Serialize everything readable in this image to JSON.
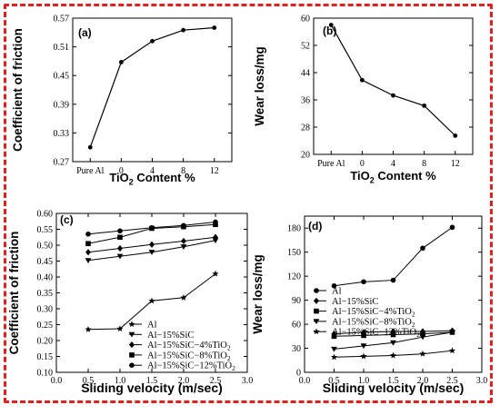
{
  "chart_data": [
    {
      "panel": "(a)",
      "type": "line",
      "categories": [
        "Pure Al",
        "0",
        "4",
        "8",
        "12"
      ],
      "values": [
        0.3,
        0.478,
        0.522,
        0.545,
        0.55
      ],
      "xlabel_main": "TiO",
      "xlabel_sub": "2",
      "xlabel_rest": " Content %",
      "ylabel": "Coefficient of friction",
      "yticks": [
        "0.27",
        "0.33",
        "0.39",
        "0.45",
        "0.51",
        "0.57"
      ],
      "ylim": [
        0.27,
        0.57
      ],
      "grid": false
    },
    {
      "panel": "(b)",
      "type": "line",
      "categories": [
        "Pure Al",
        "0",
        "4",
        "8",
        "12"
      ],
      "values": [
        58.0,
        41.8,
        37.3,
        34.3,
        25.5
      ],
      "xlabel_main": "TiO",
      "xlabel_sub": "2",
      "xlabel_rest": " Content %",
      "ylabel": "Wear loss/mg",
      "yticks": [
        "20",
        "28",
        "36",
        "44",
        "52",
        "60"
      ],
      "ylim": [
        20,
        60
      ],
      "grid": false
    },
    {
      "panel": "(c)",
      "type": "line",
      "x": [
        0.5,
        1.0,
        1.5,
        2.0,
        2.5
      ],
      "series": [
        {
          "name": "Al",
          "marker": "star",
          "values": [
            0.235,
            0.237,
            0.325,
            0.335,
            0.41
          ]
        },
        {
          "name": "Al−15%SiC",
          "marker": "down",
          "values": [
            0.452,
            0.465,
            0.478,
            0.495,
            0.515
          ]
        },
        {
          "name": "Al−15%SiC−4%TiO",
          "sub": "2",
          "marker": "diamond",
          "values": [
            0.478,
            0.49,
            0.502,
            0.513,
            0.525
          ]
        },
        {
          "name": "Al−15%SiC−8%TiO",
          "sub": "2",
          "marker": "square",
          "values": [
            0.505,
            0.525,
            0.553,
            0.558,
            0.565
          ]
        },
        {
          "name": "Al−15%SiC−12%TiO",
          "sub": "2",
          "marker": "circle",
          "values": [
            0.535,
            0.545,
            0.555,
            0.562,
            0.573
          ]
        }
      ],
      "xlabel": "Sliding velocity (m/sec)",
      "ylabel": "Coefficient of friction",
      "xticks": [
        "0.0",
        "0.5",
        "1.0",
        "1.5",
        "2.0",
        "2.5",
        "3.0"
      ],
      "xlim": [
        0,
        3
      ],
      "yticks": [
        "0.10",
        "0.15",
        "0.20",
        "0.25",
        "0.30",
        "0.35",
        "0.40",
        "0.45",
        "0.50",
        "0.55",
        "0.60"
      ],
      "ylim": [
        0.1,
        0.6
      ],
      "legend": "bottom-right",
      "grid": false
    },
    {
      "panel": "(d)",
      "type": "line",
      "x": [
        0.5,
        1.0,
        1.5,
        2.0,
        2.5
      ],
      "series": [
        {
          "name": "Al",
          "marker": "circle",
          "values": [
            108,
            113,
            115,
            155,
            181
          ]
        },
        {
          "name": "Al−15%SiC",
          "marker": "diamond",
          "values": [
            48,
            50,
            51,
            51,
            52
          ]
        },
        {
          "name": "Al−15%SiC−4%TiO",
          "sub": "2",
          "marker": "square",
          "values": [
            45,
            46,
            47,
            48,
            50
          ]
        },
        {
          "name": "Al−15%SiC−8%TiO",
          "sub": "2",
          "marker": "down",
          "values": [
            29,
            33,
            37,
            44,
            50
          ]
        },
        {
          "name": "Al−15%SiC−12%TiO",
          "sub": "2",
          "marker": "star",
          "values": [
            19,
            20,
            21,
            23,
            27
          ]
        }
      ],
      "xlabel": "Sliding velocity (m/sec)",
      "ylabel": "Wear loss/mg",
      "xticks": [
        "0.0",
        "0.5",
        "1.0",
        "1.5",
        "2.0",
        "2.5",
        "3.0"
      ],
      "xlim": [
        0,
        3
      ],
      "yticks": [
        "0",
        "30",
        "60",
        "90",
        "120",
        "150",
        "180"
      ],
      "ylim": [
        0,
        195
      ],
      "legend": "bottom-left",
      "grid": false
    }
  ],
  "colors": {
    "frame": "#e0201c",
    "ink": "#000000"
  }
}
